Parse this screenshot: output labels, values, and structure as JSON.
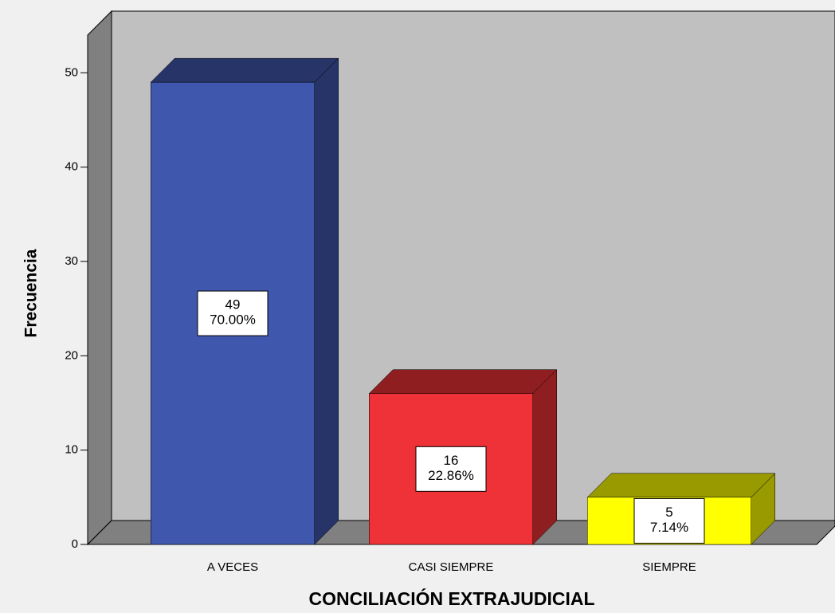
{
  "chart_data": {
    "type": "bar3d",
    "categories": [
      "A VECES",
      "CASI SIEMPRE",
      "SIEMPRE"
    ],
    "values": [
      49,
      16,
      5
    ],
    "percents": [
      70.0,
      22.86,
      7.14
    ],
    "percent_labels": [
      "70.00%",
      "22.86%",
      "7.14%"
    ],
    "colors": [
      "#3f57ac",
      "#ef3237",
      "#ffff00"
    ],
    "xlabel": "CONCILIACIÓN EXTRAJUDICIAL",
    "ylabel": "Frecuencia",
    "ylim": [
      0,
      54
    ],
    "yticks": [
      0,
      10,
      20,
      30,
      40,
      50
    ]
  }
}
